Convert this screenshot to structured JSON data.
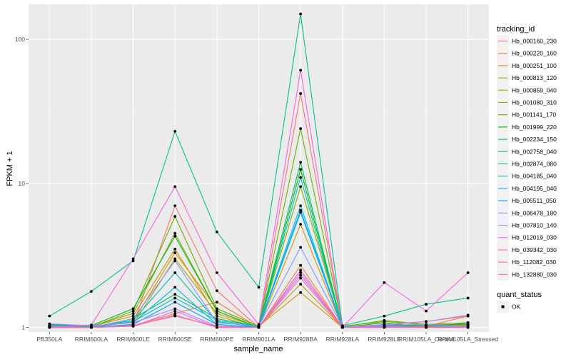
{
  "chart_data": {
    "type": "line",
    "xlabel": "sample_name",
    "ylabel": "FPKM + 1",
    "y_scale": "log10",
    "ylim": [
      0.93,
      175
    ],
    "y_ticks": [
      1,
      10,
      100
    ],
    "y_tick_labels": [
      "1",
      "10",
      "100"
    ],
    "categories": [
      "PB350LA",
      "RRIM600LA",
      "RRIM600LE",
      "RRIM600SE",
      "RRIM600PE",
      "RRIM901LA",
      "RRIM928BA",
      "RRIM928LA",
      "RRIM928LE",
      "RRIM105LA_Control",
      "RRIM105LA_Stressed"
    ],
    "grid": true,
    "legend": {
      "title": "tracking_id",
      "placement": "right"
    },
    "shape_legend": {
      "title": "quant_status",
      "items": [
        "OK"
      ]
    },
    "series": [
      {
        "name": "Hb_000160_230",
        "color": "#F8766D",
        "values": [
          1.02,
          1.0,
          1.05,
          7.0,
          1.8,
          1.0,
          42,
          1.0,
          1.05,
          1.02,
          1.2
        ]
      },
      {
        "name": "Hb_000220_160",
        "color": "#EC8239",
        "values": [
          1.0,
          1.0,
          1.03,
          1.25,
          1.5,
          1.0,
          2.7,
          1.0,
          1.04,
          1.1,
          1.2
        ]
      },
      {
        "name": "Hb_000251_100",
        "color": "#DB8E00",
        "values": [
          1.03,
          1.01,
          1.1,
          3.3,
          1.35,
          1.02,
          1.75,
          1.0,
          1.02,
          1.03,
          1.04
        ]
      },
      {
        "name": "Hb_000813_120",
        "color": "#C79800",
        "values": [
          1.01,
          1.02,
          1.2,
          3.5,
          1.2,
          1.0,
          5.2,
          1.0,
          1.04,
          1.0,
          1.02
        ]
      },
      {
        "name": "Hb_000859_040",
        "color": "#AEA200",
        "values": [
          1.0,
          1.0,
          1.05,
          3.0,
          1.25,
          1.01,
          2.0,
          1.0,
          1.05,
          1.02,
          1.06
        ]
      },
      {
        "name": "Hb_001080_310",
        "color": "#8FAA00",
        "values": [
          1.03,
          1.02,
          1.25,
          4.5,
          1.3,
          1.0,
          9.5,
          1.01,
          1.12,
          1.05,
          1.08
        ]
      },
      {
        "name": "Hb_001141_170",
        "color": "#64B200",
        "values": [
          1.02,
          1.01,
          1.3,
          5.9,
          1.35,
          1.02,
          24,
          1.02,
          1.1,
          1.05,
          1.05
        ]
      },
      {
        "name": "Hb_001999_220",
        "color": "#00B81B",
        "values": [
          1.05,
          1.03,
          1.35,
          4.3,
          1.3,
          1.0,
          12.5,
          1.0,
          1.08,
          1.0,
          1.08
        ]
      },
      {
        "name": "Hb_002234_150",
        "color": "#00BD5C",
        "values": [
          1.02,
          1.0,
          1.15,
          1.7,
          1.15,
          1.02,
          14,
          1.0,
          1.03,
          1.04,
          1.02
        ]
      },
      {
        "name": "Hb_002758_040",
        "color": "#00C08E",
        "values": [
          1.2,
          1.78,
          2.9,
          23,
          4.6,
          1.9,
          150,
          1.03,
          1.2,
          1.45,
          1.6
        ]
      },
      {
        "name": "Hb_002874_080",
        "color": "#00C1B7",
        "values": [
          1.0,
          1.01,
          1.12,
          2.4,
          1.1,
          1.0,
          11,
          1.0,
          1.02,
          1.02,
          1.03
        ]
      },
      {
        "name": "Hb_004185_040",
        "color": "#00BDD4",
        "values": [
          1.01,
          1.0,
          1.1,
          1.6,
          1.12,
          1.02,
          6.5,
          1.02,
          1.02,
          1.0,
          1.02
        ]
      },
      {
        "name": "Hb_004195_040",
        "color": "#00B5EE",
        "values": [
          1.04,
          1.02,
          1.08,
          1.9,
          1.05,
          1.0,
          7.0,
          1.0,
          1.01,
          1.02,
          1.0
        ]
      },
      {
        "name": "Hb_005511_050",
        "color": "#00A7FF",
        "values": [
          1.0,
          1.0,
          1.05,
          1.5,
          1.05,
          1.0,
          6.3,
          1.0,
          1.0,
          1.0,
          1.02
        ]
      },
      {
        "name": "Hb_006478_180",
        "color": "#7F96FF",
        "values": [
          1.02,
          1.0,
          1.15,
          2.9,
          1.08,
          1.02,
          3.6,
          1.01,
          1.04,
          1.05,
          1.02
        ]
      },
      {
        "name": "Hb_007810_140",
        "color": "#BC81FF",
        "values": [
          1.06,
          1.03,
          1.08,
          1.35,
          1.02,
          1.0,
          2.4,
          1.0,
          1.05,
          1.1,
          1.22
        ]
      },
      {
        "name": "Hb_012019_030",
        "color": "#E26EF7",
        "values": [
          1.0,
          1.0,
          1.02,
          1.3,
          1.0,
          1.0,
          2.2,
          1.0,
          1.02,
          1.0,
          1.02
        ]
      },
      {
        "name": "Hb_039342_030",
        "color": "#F863DF",
        "values": [
          1.0,
          1.04,
          3.0,
          9.5,
          2.4,
          1.05,
          61,
          1.0,
          2.05,
          1.3,
          2.4
        ]
      },
      {
        "name": "Hb_112082_030",
        "color": "#FF62BF",
        "values": [
          1.0,
          1.0,
          1.03,
          1.2,
          1.02,
          1.0,
          2.5,
          1.0,
          1.0,
          1.02,
          1.0
        ]
      },
      {
        "name": "Hb_132880_030",
        "color": "#FF6A98",
        "values": [
          1.0,
          1.0,
          1.02,
          1.22,
          1.0,
          1.0,
          2.3,
          1.0,
          1.0,
          1.0,
          1.0
        ]
      }
    ]
  }
}
